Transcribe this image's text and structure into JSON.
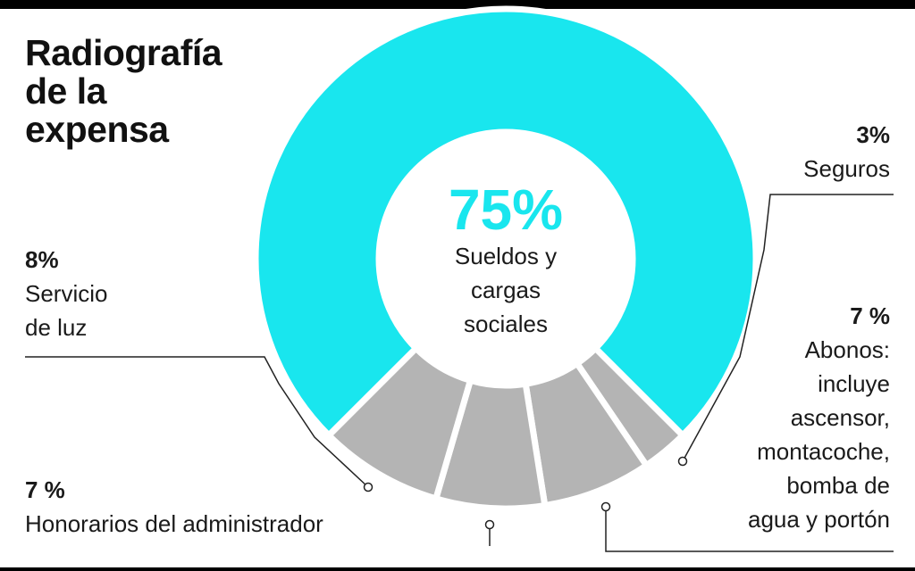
{
  "title": "Radiografía\nde la\nexpensa",
  "colors": {
    "highlight": "#19e6ee",
    "other": "#b4b4b4",
    "leader": "#222222"
  },
  "chart_data": {
    "type": "pie",
    "title": "Radiografía de la expensa",
    "unit": "%",
    "slices": [
      {
        "key": "sueldos",
        "pct_label": "75%",
        "value": 75,
        "label": "Sueldos y\ncargas\nsociales",
        "highlight": true
      },
      {
        "key": "seguros",
        "pct_label": "3%",
        "value": 3,
        "label": "Seguros"
      },
      {
        "key": "abonos",
        "pct_label": "7 %",
        "value": 7,
        "label": "Abonos:\nincluye\nascensor,\nmontacoche,\nbomba de\nagua y portón"
      },
      {
        "key": "honorarios",
        "pct_label": "7 %",
        "value": 7,
        "label": "Honorarios del administrador"
      },
      {
        "key": "luz",
        "pct_label": "8%",
        "value": 8,
        "label": "Servicio\nde luz"
      }
    ]
  }
}
